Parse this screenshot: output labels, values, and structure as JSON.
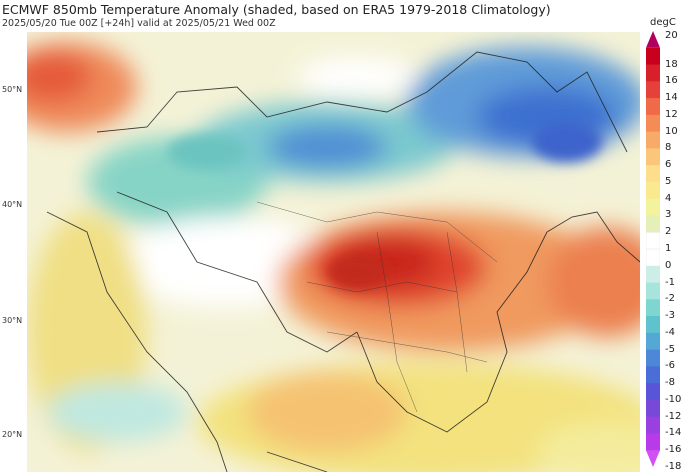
{
  "header": {
    "title": "ECMWF 850mb Temperature Anomaly (shaded, based on ERA5 1979-2018 Climatology)",
    "subtitle": "2025/05/20 Tue 00Z [+24h] valid at 2025/05/21 Wed 00Z"
  },
  "lat_labels": [
    "50°N",
    "40°N",
    "30°N",
    "20°N"
  ],
  "colorbar": {
    "unit": "degC",
    "labels": [
      "20",
      "18",
      "16",
      "14",
      "12",
      "10",
      "8",
      "6",
      "5",
      "4",
      "3",
      "2",
      "1",
      "0",
      "-1",
      "-2",
      "-3",
      "-4",
      "-5",
      "-6",
      "-8",
      "-10",
      "-12",
      "-14",
      "-16",
      "-18"
    ],
    "colors": [
      "#b0005f",
      "#c8001e",
      "#d8202a",
      "#e6403a",
      "#ef6a48",
      "#f58b56",
      "#f8aa68",
      "#fbc57a",
      "#fdde8c",
      "#fbe98f",
      "#f3f29d",
      "#e4f0b8",
      "#ffffff",
      "#ffffff",
      "#cdeee7",
      "#a6e4dc",
      "#7fd6d1",
      "#5ec3cc",
      "#53a8d6",
      "#4d88d8",
      "#4a6dd8",
      "#5a55d8",
      "#7848d8",
      "#9a40e0",
      "#b93ae8",
      "#d24ff5"
    ]
  },
  "colors": {
    "warm": "#e34a33",
    "hot": "#d7301f",
    "yellow": "#f7e58e",
    "cool": "#7fd3c5",
    "cold": "#4f86d3"
  }
}
